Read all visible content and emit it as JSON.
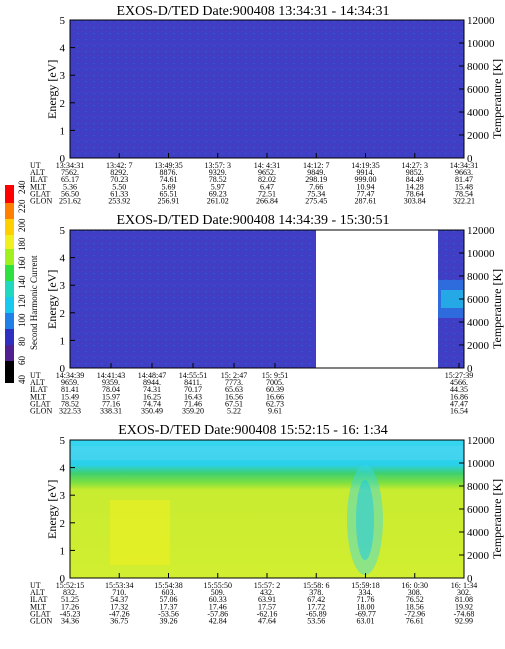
{
  "panels": [
    {
      "title": "EXOS-D/TED   Date:900408   13:34:31 - 14:34:31",
      "ylabel": "Energy [eV]",
      "y2label": "Temperature [K]",
      "ylim": [
        0,
        5
      ],
      "y2lim": [
        0,
        12000
      ],
      "yticks": [
        "0",
        "1",
        "2",
        "3",
        "4",
        "5"
      ],
      "y2ticks": [
        "0",
        "2000",
        "4000",
        "6000",
        "8000",
        "10000",
        "12000"
      ],
      "row_labels": [
        "UT",
        "ALT",
        "ILAT",
        "MLT",
        "GLAT",
        "GLON"
      ],
      "columns": [
        [
          "13:34:31",
          "7562.",
          "65.17",
          "5.36",
          "56.50",
          "251.62"
        ],
        [
          "13:42: 7",
          "8292.",
          "70.23",
          "5.50",
          "61.33",
          "253.92"
        ],
        [
          "13:49:35",
          "8876.",
          "74.61",
          "5.69",
          "65.51",
          "256.91"
        ],
        [
          "13:57: 3",
          "9329.",
          "78.52",
          "5.97",
          "69.23",
          "261.02"
        ],
        [
          "14: 4:31",
          "9652.",
          "82.02",
          "6.47",
          "72.51",
          "266.84"
        ],
        [
          "14:12: 7",
          "9849.",
          "298.19",
          "7.66",
          "75.34",
          "275.45"
        ],
        [
          "14:19:35",
          "9914.",
          "999.00",
          "10.94",
          "77.47",
          "287.61"
        ],
        [
          "14:27: 3",
          "9852.",
          "84.49",
          "14.28",
          "78.64",
          "303.84"
        ],
        [
          "14:34:31",
          "9663.",
          "81.47",
          "15.48",
          "78.54",
          "322.21"
        ]
      ]
    },
    {
      "title": "EXOS-D/TED   Date:900408   14:34:39 - 15:30:51",
      "ylabel": "Energy [eV]",
      "y2label": "Temperature [K]",
      "ylim": [
        0,
        5
      ],
      "y2lim": [
        0,
        12000
      ],
      "yticks": [
        "0",
        "1",
        "2",
        "3",
        "4",
        "5"
      ],
      "y2ticks": [
        "0",
        "2000",
        "4000",
        "6000",
        "8000",
        "10000",
        "12000"
      ],
      "row_labels": [
        "UT",
        "ALT",
        "ILAT",
        "MLT",
        "GLAT",
        "GLON"
      ],
      "columns": [
        [
          "14:34:39",
          "9659.",
          "81.41",
          "15.49",
          "78.52",
          "322.53"
        ],
        [
          "14:41:43",
          "9359.",
          "78.04",
          "15.97",
          "77.16",
          "338.31"
        ],
        [
          "14:48:47",
          "8944.",
          "74.31",
          "16.25",
          "74.74",
          "350.49"
        ],
        [
          "14:55:51",
          "8411.",
          "70.17",
          "16.43",
          "71.46",
          "359.20"
        ],
        [
          "15: 2:47",
          "7773.",
          "65.63",
          "16.56",
          "67.51",
          "5.22"
        ],
        [
          "15: 9:51",
          "7005.",
          "60.39",
          "16.66",
          "62.73",
          "9.61"
        ],
        [
          "15:27:39",
          "4566.",
          "44.35",
          "16.86",
          "47.47",
          "16.54"
        ]
      ]
    },
    {
      "title": "EXOS-D/TED   Date:900408   15:52:15 - 16: 1:34",
      "ylabel": "Energy [eV]",
      "y2label": "Temperature [K]",
      "ylim": [
        0,
        5
      ],
      "y2lim": [
        0,
        12000
      ],
      "yticks": [
        "0",
        "1",
        "2",
        "3",
        "4",
        "5"
      ],
      "y2ticks": [
        "0",
        "2000",
        "4000",
        "6000",
        "8000",
        "10000",
        "12000"
      ],
      "row_labels": [
        "UT",
        "ALT",
        "ILAT",
        "MLT",
        "GLAT",
        "GLON"
      ],
      "columns": [
        [
          "15:52:15",
          "832.",
          "51.25",
          "17.26",
          "-45.23",
          "34.36"
        ],
        [
          "15:53:34",
          "710.",
          "54.37",
          "17.32",
          "-47.26",
          "36.75"
        ],
        [
          "15:54:38",
          "603.",
          "57.06",
          "17.37",
          "-53.56",
          "39.26"
        ],
        [
          "15:55:50",
          "509.",
          "60.33",
          "17.46",
          "-57.86",
          "42.84"
        ],
        [
          "15:57: 2",
          "432.",
          "63.91",
          "17.57",
          "-62.16",
          "47.64"
        ],
        [
          "15:58: 6",
          "378.",
          "67.42",
          "17.72",
          "-65.89",
          "53.56"
        ],
        [
          "15:59:18",
          "334.",
          "71.76",
          "18.00",
          "-69.77",
          "63.01"
        ],
        [
          "16: 0:30",
          "308.",
          "76.52",
          "18.56",
          "-72.96",
          "76.61"
        ],
        [
          "16: 1:34",
          "302.",
          "81.08",
          "19.92",
          "-74.68",
          "92.99"
        ]
      ]
    }
  ],
  "colorbar": {
    "label": "Second Harmonic Current",
    "ticks": [
      "40",
      "60",
      "80",
      "100",
      "120",
      "140",
      "160",
      "180",
      "200",
      "220",
      "240"
    ]
  },
  "colors": {
    "dark_blue": "#3e3fc4",
    "cyan": "#18c8ee",
    "light_cyan": "#38d6f0",
    "green": "#3ed070",
    "lime": "#c8ec30",
    "yellow": "#f0f020"
  },
  "chart_data": [
    {
      "type": "heatmap",
      "title": "EXOS-D/TED   Date:900408   13:34:31 - 14:34:31",
      "xlabel": "UT",
      "ylabel": "Energy [eV]",
      "ylim": [
        0,
        5
      ],
      "y2label": "Temperature [K]",
      "y2lim": [
        0,
        12000
      ],
      "values_summary": "uniform low second harmonic current (~60-80) across all energies and times"
    },
    {
      "type": "heatmap",
      "title": "EXOS-D/TED   Date:900408   14:34:39 - 15:30:51",
      "xlabel": "UT",
      "ylabel": "Energy [eV]",
      "ylim": [
        0,
        5
      ],
      "y2label": "Temperature [K]",
      "y2lim": [
        0,
        12000
      ],
      "values_summary": "uniform low values (~60-80) until 15:9:51, data gap, then low values with a brighter band near 2.5-3.2 eV at 15:27:39"
    },
    {
      "type": "heatmap",
      "title": "EXOS-D/TED   Date:900408   15:52:15 - 16: 1:34",
      "xlabel": "UT",
      "ylabel": "Energy [eV]",
      "ylim": [
        0,
        5
      ],
      "y2label": "Temperature [K]",
      "y2lim": [
        0,
        12000
      ],
      "values_summary": "high values (~180-220) below ~3.6 eV, green band near 3.6-4.0 eV, cyan (~120) above; enhanced column near 15:58"
    }
  ]
}
